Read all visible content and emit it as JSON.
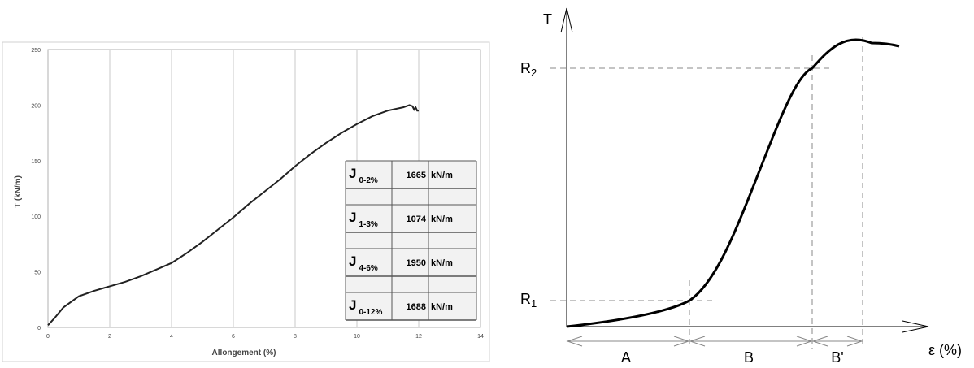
{
  "chart_data": [
    {
      "type": "line",
      "xlabel": "Allongement (%)",
      "ylabel": "T (kN/m)",
      "xlim": [
        0,
        14
      ],
      "ylim": [
        0,
        250
      ],
      "x_ticks": [
        0,
        2,
        4,
        6,
        8,
        10,
        12,
        14
      ],
      "y_ticks": [
        0,
        50,
        100,
        150,
        200,
        250
      ],
      "grid": "vertical",
      "series": [
        {
          "x": [
            0,
            0.2,
            0.5,
            1.0,
            1.5,
            2.0,
            2.5,
            3.0,
            3.5,
            4.0,
            4.5,
            5.0,
            5.5,
            6.0,
            6.5,
            7.0,
            7.5,
            8.0,
            8.5,
            9.0,
            9.5,
            10.0,
            10.5,
            11.0,
            11.5,
            11.7,
            11.8,
            11.85,
            11.9,
            11.95,
            12.0
          ],
          "values": [
            2,
            8,
            18,
            28,
            33,
            37,
            41,
            46,
            52,
            58,
            67,
            77,
            88,
            99,
            111,
            122,
            133,
            145,
            156,
            166,
            175,
            183,
            190,
            195,
            198,
            200,
            199,
            196,
            198,
            195,
            195
          ]
        }
      ],
      "table": [
        {
          "label": "J",
          "sub": "0-2%",
          "value": "1665",
          "unit": "kN/m"
        },
        {
          "label": "J",
          "sub": "1-3%",
          "value": "1074",
          "unit": "kN/m"
        },
        {
          "label": "J",
          "sub": "4-6%",
          "value": "1950",
          "unit": "kN/m"
        },
        {
          "label": "J",
          "sub": "0-12%",
          "value": "1688",
          "unit": "kN/m"
        }
      ]
    },
    {
      "type": "line",
      "ylabel": "T",
      "xlabel": "ε (%)",
      "y_marks": [
        {
          "main": "R",
          "sub": "1",
          "level": 0.1
        },
        {
          "main": "R",
          "sub": "2",
          "level": 0.9
        }
      ],
      "zones": [
        "A",
        "B",
        "B'"
      ]
    }
  ]
}
